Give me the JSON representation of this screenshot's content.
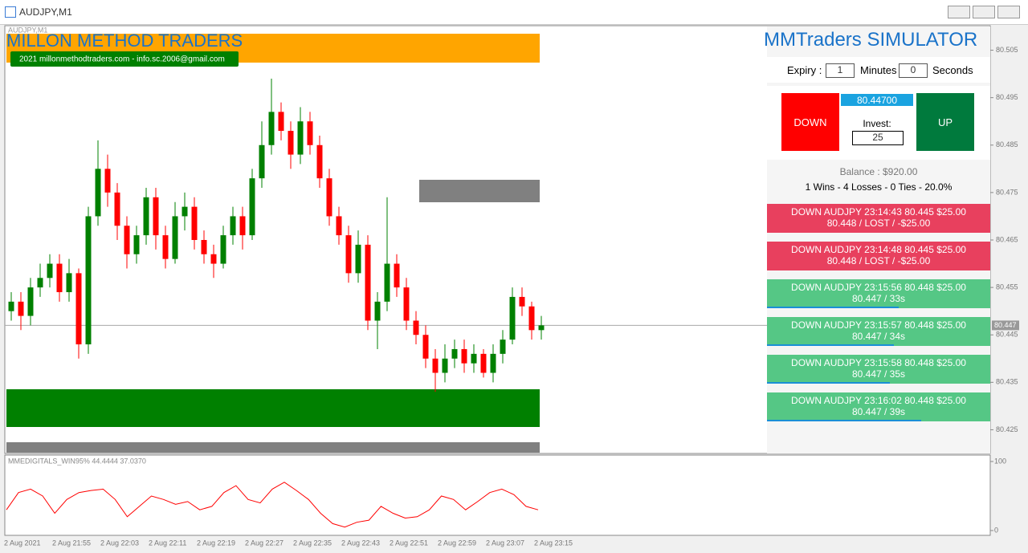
{
  "window": {
    "title": "AUDJPY,M1"
  },
  "chart_data": {
    "type": "candlestick",
    "symbol_label": "AUDJPY,M1",
    "brand": "MILLON METHOD TRADERS",
    "contact": "2021 millonmethodtraders.com - info.sc.2006@gmail.com",
    "open": [
      80.45,
      80.452,
      80.449,
      80.455,
      80.457,
      80.46,
      80.454,
      80.458,
      80.443,
      80.47,
      80.48,
      80.475,
      80.468,
      80.462,
      80.466,
      80.474,
      80.466,
      80.461,
      80.47,
      80.472,
      80.465,
      80.462,
      80.46,
      80.466,
      80.47,
      80.466,
      80.478,
      80.485,
      80.492,
      80.488,
      80.483,
      80.49,
      80.485,
      80.478,
      80.47,
      80.466,
      80.458,
      80.464,
      80.448,
      80.452,
      80.46,
      80.455,
      80.448,
      80.445,
      80.44,
      80.437,
      80.44,
      80.442,
      80.439,
      80.441,
      80.437,
      80.441,
      80.444,
      80.453,
      80.451,
      80.446
    ],
    "high": [
      80.454,
      80.454,
      80.457,
      80.46,
      80.462,
      80.462,
      80.461,
      80.459,
      80.472,
      80.486,
      80.483,
      80.477,
      80.47,
      80.468,
      80.476,
      80.476,
      80.468,
      80.473,
      80.475,
      80.474,
      80.467,
      80.464,
      80.468,
      80.472,
      80.472,
      80.48,
      80.49,
      80.499,
      80.494,
      80.49,
      80.493,
      80.492,
      80.487,
      80.48,
      80.472,
      80.468,
      80.467,
      80.466,
      80.454,
      80.474,
      80.462,
      80.457,
      80.45,
      80.447,
      80.442,
      80.443,
      80.444,
      80.444,
      80.443,
      80.442,
      80.443,
      80.446,
      80.455,
      80.455,
      80.452,
      80.449
    ],
    "low": [
      80.448,
      80.446,
      80.447,
      80.453,
      80.455,
      80.452,
      80.452,
      80.44,
      80.441,
      80.468,
      80.472,
      80.465,
      80.459,
      80.46,
      80.464,
      80.463,
      80.459,
      80.46,
      80.467,
      80.463,
      80.46,
      80.457,
      80.459,
      80.464,
      80.463,
      80.465,
      80.476,
      80.483,
      80.486,
      80.48,
      80.481,
      80.483,
      80.476,
      80.468,
      80.464,
      80.456,
      80.456,
      80.446,
      80.442,
      80.45,
      80.453,
      80.446,
      80.443,
      80.438,
      80.433,
      80.435,
      80.438,
      80.437,
      80.437,
      80.436,
      80.435,
      80.439,
      80.443,
      80.449,
      80.444,
      80.444
    ],
    "close": [
      80.452,
      80.449,
      80.455,
      80.457,
      80.46,
      80.454,
      80.458,
      80.443,
      80.47,
      80.48,
      80.475,
      80.468,
      80.462,
      80.466,
      80.474,
      80.466,
      80.461,
      80.47,
      80.472,
      80.465,
      80.462,
      80.46,
      80.466,
      80.47,
      80.466,
      80.478,
      80.485,
      80.492,
      80.488,
      80.483,
      80.49,
      80.485,
      80.478,
      80.47,
      80.466,
      80.458,
      80.464,
      80.448,
      80.452,
      80.46,
      80.455,
      80.448,
      80.445,
      80.44,
      80.437,
      80.44,
      80.442,
      80.439,
      80.441,
      80.437,
      80.441,
      80.444,
      80.453,
      80.451,
      80.446,
      80.447
    ],
    "up_color": "#008000",
    "down_color": "#ff0000",
    "ylim": [
      80.42,
      80.51
    ],
    "yticks": [
      80.505,
      80.495,
      80.485,
      80.475,
      80.465,
      80.455,
      80.445,
      80.435,
      80.425
    ],
    "current_price": 80.447,
    "x_labels": [
      "2 Aug 2021",
      "2 Aug 21:55",
      "2 Aug 22:03",
      "2 Aug 22:11",
      "2 Aug 22:19",
      "2 Aug 22:27",
      "2 Aug 22:35",
      "2 Aug 22:43",
      "2 Aug 22:51",
      "2 Aug 22:59",
      "2 Aug 23:07",
      "2 Aug 23:15"
    ],
    "indicator": {
      "type": "line",
      "label": "MMEDIGITALS_WIN95% 44.4444 37.0370",
      "color": "#ff0000",
      "ylim": [
        0,
        100
      ],
      "yticks": [
        0,
        100
      ],
      "values": [
        30,
        55,
        60,
        50,
        25,
        45,
        55,
        58,
        60,
        45,
        20,
        35,
        50,
        45,
        38,
        42,
        30,
        35,
        55,
        65,
        45,
        40,
        60,
        70,
        58,
        45,
        25,
        10,
        5,
        12,
        15,
        35,
        25,
        18,
        20,
        30,
        50,
        45,
        30,
        42,
        55,
        60,
        52,
        35,
        30
      ]
    }
  },
  "simulator": {
    "title": "MMTraders SIMULATOR",
    "expiry_label": "Expiry :",
    "minutes": "1",
    "minutes_label": "Minutes",
    "seconds": "0",
    "seconds_label": "Seconds",
    "down": "DOWN",
    "price": "80.44700",
    "invest_label": "Invest:",
    "invest": "25",
    "up": "UP",
    "balance": "Balance : $920.00",
    "stats": "1 Wins - 4 Losses - 0 Ties - 20.0%",
    "trades": [
      {
        "line1": "DOWN AUDJPY 23:14:43 80.445 $25.00",
        "line2": "80.448 / LOST / -$25.00",
        "color": "#e8405e"
      },
      {
        "line1": "DOWN AUDJPY 23:14:48 80.445 $25.00",
        "line2": "80.448 / LOST / -$25.00",
        "color": "#e8405e"
      },
      {
        "line1": "DOWN AUDJPY 23:15:56 80.448 $25.00",
        "line2": "80.447 / 33s",
        "color": "#55c785",
        "progress": 0.59
      },
      {
        "line1": "DOWN AUDJPY 23:15:57 80.448 $25.00",
        "line2": "80.447 / 34s",
        "color": "#55c785",
        "progress": 0.57
      },
      {
        "line1": "DOWN AUDJPY 23:15:58 80.448 $25.00",
        "line2": "80.447 / 35s",
        "color": "#55c785",
        "progress": 0.55
      },
      {
        "line1": "DOWN AUDJPY 23:16:02 80.448 $25.00",
        "line2": "80.447 / 39s",
        "color": "#55c785",
        "progress": 0.69
      }
    ]
  }
}
